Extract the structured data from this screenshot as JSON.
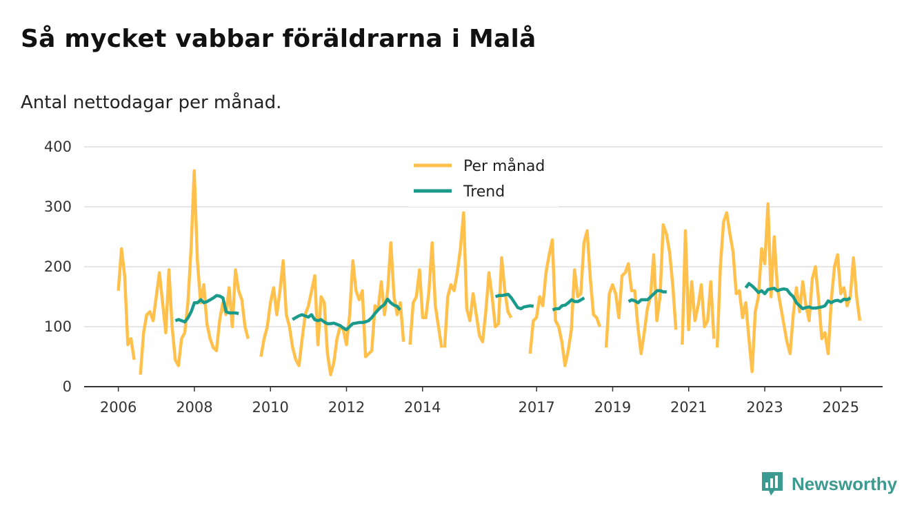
{
  "header": {
    "title": "Så mycket vabbar föräldrarna i Malå",
    "subtitle": "Antal nettodagar per månad."
  },
  "brand": {
    "name": "Newsworthy",
    "icon": "bar-chart-logo-icon",
    "color": "#3d9a90"
  },
  "colors": {
    "monthly": "#ffc04c",
    "trend": "#1a9a8a",
    "grid": "#dddddd",
    "axis": "#333333"
  },
  "chart_data": {
    "type": "line",
    "title": "Så mycket vabbar föräldrarna i Malå",
    "subtitle": "Antal nettodagar per månad.",
    "xlabel": "",
    "ylabel": "",
    "ylim": [
      0,
      400
    ],
    "xlim": [
      2005.1,
      2026.1
    ],
    "yticks": [
      0,
      100,
      200,
      300,
      400
    ],
    "xticks": [
      2006,
      2008,
      2010,
      2012,
      2014,
      2017,
      2019,
      2021,
      2023,
      2025
    ],
    "grid": true,
    "legend": {
      "placement": "top-center",
      "entries": [
        "Per månad",
        "Trend"
      ]
    },
    "series": [
      {
        "name": "Per månad",
        "color": "#ffc04c",
        "segments": [
          {
            "start": 2006.0,
            "values": [
              160,
              230,
              185,
              70,
              80,
              45
            ]
          },
          {
            "start": 2006.58,
            "values": [
              20,
              90,
              120,
              125,
              110,
              150,
              190,
              140,
              90,
              195,
              100,
              45,
              35,
              80,
              90,
              140,
              230,
              360,
              210,
              140,
              170,
              105,
              80,
              65,
              60,
              110,
              140,
              120,
              165,
              100,
              195,
              160,
              145,
              100,
              80
            ]
          },
          {
            "start": 2009.75,
            "values": [
              50,
              80,
              100,
              140,
              165,
              120,
              160,
              210,
              120,
              100,
              65,
              45,
              35,
              80,
              120,
              135,
              160,
              185,
              70,
              150,
              140,
              55,
              20,
              40,
              80,
              100,
              95,
              70,
              120,
              210,
              160,
              145,
              160,
              50,
              55,
              60,
              135,
              130,
              175,
              120,
              160,
              240,
              150,
              120,
              140,
              75
            ]
          },
          {
            "start": 2013.67,
            "values": [
              70,
              140,
              150,
              195,
              115,
              115,
              160,
              240,
              135,
              100,
              65
            ]
          },
          {
            "start": 2014.58,
            "values": [
              65,
              150,
              170,
              160,
              190,
              230,
              290,
              130,
              110,
              155,
              120,
              85,
              75,
              125,
              190,
              150,
              100,
              105,
              215,
              160,
              125,
              115
            ]
          },
          {
            "start": 2016.83,
            "values": [
              55,
              110,
              115,
              150,
              135,
              190,
              220,
              245,
              110,
              100,
              75,
              35,
              60,
              95,
              195,
              150,
              155,
              240,
              260,
              180,
              120,
              115,
              100
            ]
          },
          {
            "start": 2018.83,
            "values": [
              65,
              155,
              170,
              155,
              115,
              185,
              190,
              205,
              160,
              160,
              100,
              55,
              90,
              130,
              150,
              220,
              110,
              150,
              270,
              255,
              225,
              170,
              95
            ]
          },
          {
            "start": 2020.83,
            "values": [
              70,
              260,
              95,
              175,
              110,
              135,
              170,
              100,
              110,
              175,
              80
            ]
          },
          {
            "start": 2021.75,
            "values": [
              65,
              200,
              275,
              290,
              255,
              225,
              155,
              160,
              115,
              140,
              80,
              25,
              125,
              150,
              230,
              205,
              305,
              150,
              250,
              165,
              135,
              105,
              75,
              55,
              120,
              165,
              125,
              175,
              135,
              110,
              180,
              200,
              145,
              80,
              90,
              55,
              145,
              200,
              220,
              155,
              165,
              135,
              150,
              215,
              150,
              110
            ]
          }
        ]
      },
      {
        "name": "Trend",
        "color": "#1a9a8a",
        "segments": [
          {
            "start": 2007.5,
            "values": [
              110,
              112,
              110,
              108,
              115,
              125,
              140,
              140,
              145,
              140,
              142,
              145,
              148,
              152,
              151,
              148,
              125,
              123,
              123,
              123,
              122
            ]
          },
          {
            "start": 2010.58,
            "values": [
              112,
              115,
              118,
              120,
              118,
              116,
              120,
              112,
              110,
              112,
              108,
              105,
              105,
              106,
              104,
              102,
              98,
              95,
              100,
              105,
              106,
              107,
              107,
              108,
              110,
              115,
              122,
              128,
              133,
              137,
              146,
              140,
              136,
              134,
              128
            ]
          },
          {
            "start": 2015.92,
            "values": [
              150,
              152,
              152,
              153,
              154,
              148,
              140,
              132,
              130,
              133,
              134,
              135,
              134
            ]
          },
          {
            "start": 2017.42,
            "values": [
              128,
              130,
              130,
              135,
              136,
              140,
              145,
              142,
              142,
              145,
              148
            ]
          },
          {
            "start": 2019.42,
            "values": [
              142,
              145,
              143,
              140,
              145,
              145,
              145,
              150,
              155,
              160,
              160,
              158,
              158
            ]
          },
          {
            "start": 2022.5,
            "values": [
              165,
              172,
              168,
              163,
              157,
              160,
              155,
              162,
              163,
              164,
              160,
              162,
              163,
              162,
              155,
              150,
              140,
              135,
              130,
              132,
              133,
              131,
              131,
              132,
              133,
              135,
              143,
              140,
              143,
              144,
              142,
              146,
              145,
              148
            ]
          }
        ]
      }
    ]
  }
}
